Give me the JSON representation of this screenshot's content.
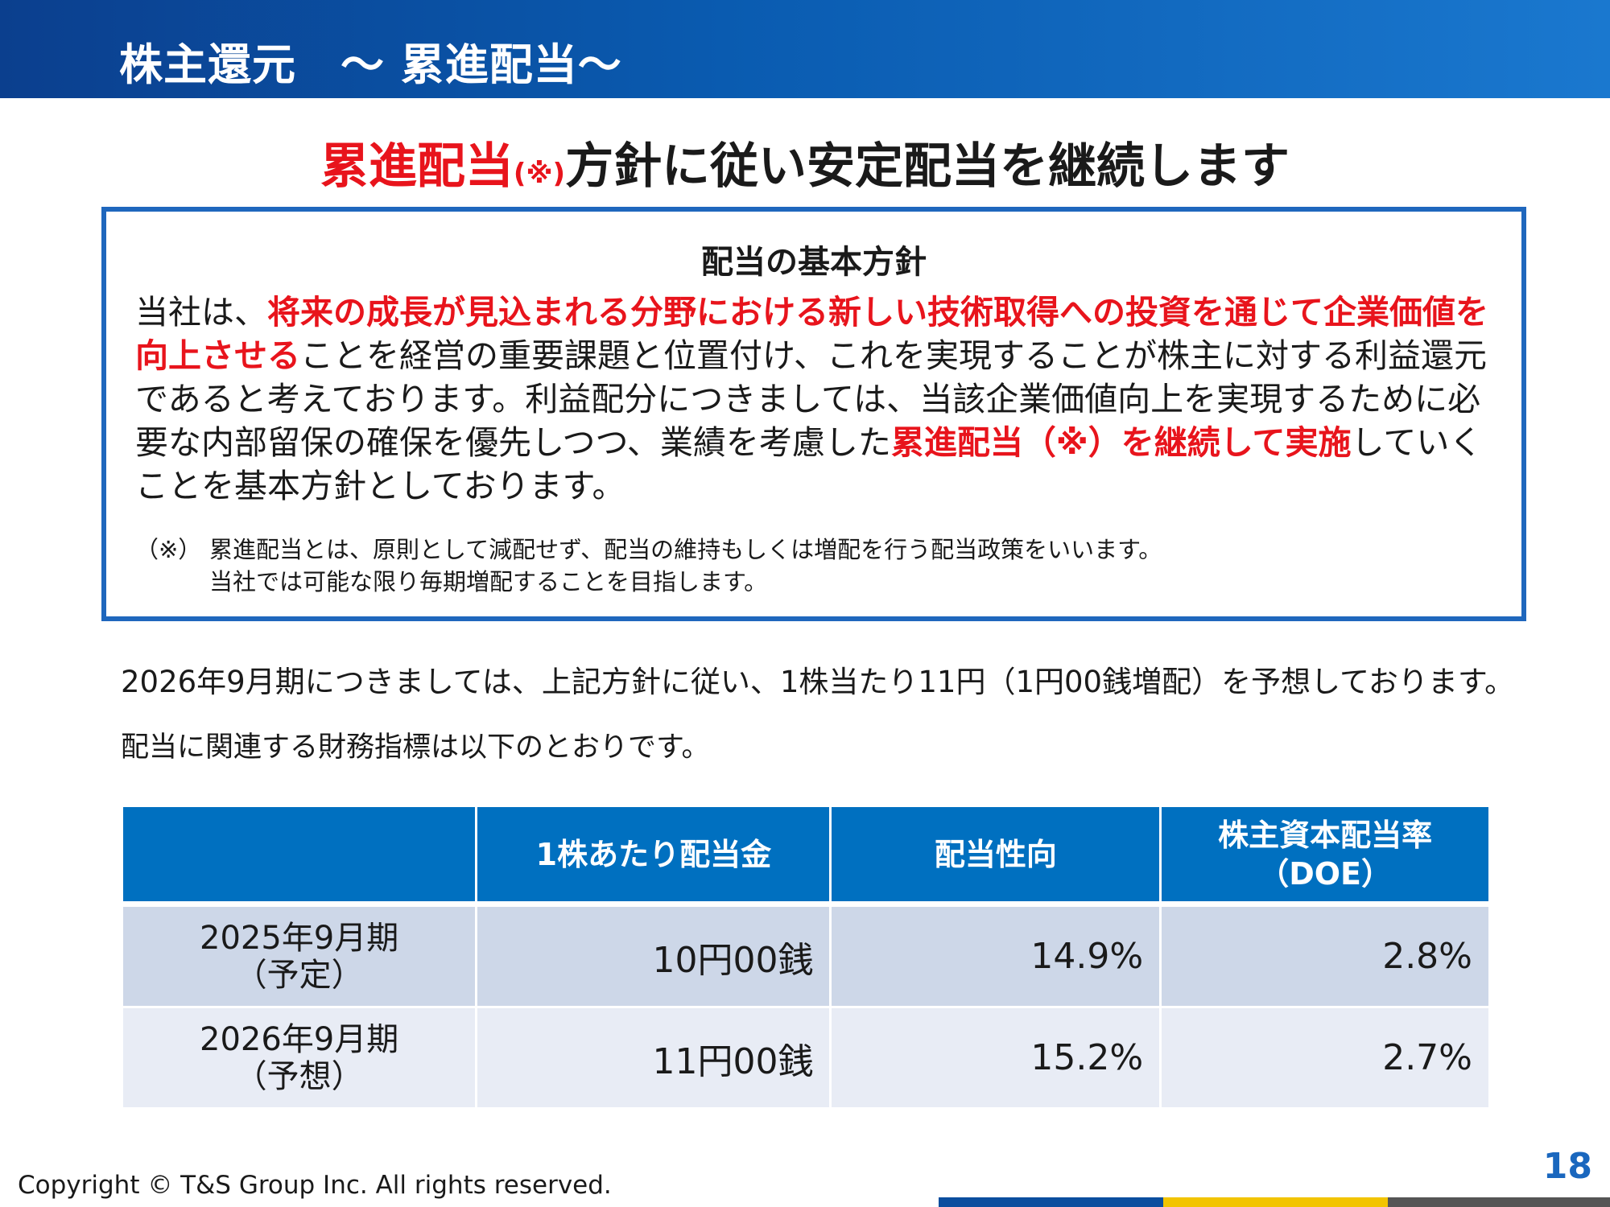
{
  "header": {
    "title": "株主還元　～ 累進配当～"
  },
  "headline": {
    "red_part": "累進配当",
    "note_mark": "(※)",
    "rest": "方針に従い安定配当を継続します"
  },
  "policy": {
    "heading": "配当の基本方針",
    "body": {
      "p1": "当社は、",
      "p2_red": "将来の成長が見込まれる分野における新しい技術取得への投資を通じて企業価値を向上させる",
      "p3": "ことを経営の重要課題と位置付け、これを実現することが株主に対する利益還元であると考えております。利益配分につきましては、当該企業価値向上を実現するために必要な内部留保の確保を優先しつつ、業績を考慮した",
      "p4_red": "累進配当（※）を継続して実施",
      "p5": "していくことを基本方針としております。"
    },
    "note": {
      "mark": "（※）",
      "line1": "累進配当とは、原則として減配せず、配当の維持もしくは増配を行う配当政策をいいます。",
      "line2": "当社では可能な限り毎期増配することを目指します。"
    }
  },
  "forecast_text": "2026年9月期につきましては、上記方針に従い、1株当たり11円（1円00銭増配）を予想しております。",
  "metrics_text": "配当に関連する財務指標は以下のとおりです。",
  "table": {
    "headers": [
      "",
      "1株あたり配当金",
      "配当性向",
      "株主資本配当率",
      "（DOE）"
    ],
    "rows": [
      {
        "period": "2025年9月期",
        "status": "（予定）",
        "dividend": "10円00銭",
        "payout": "14.9%",
        "doe": "2.8%"
      },
      {
        "period": "2026年9月期",
        "status": "（予想）",
        "dividend": "11円00銭",
        "payout": "15.2%",
        "doe": "2.7%"
      }
    ]
  },
  "footer": {
    "copyright": "Copyright © T&S Group Inc. All rights reserved.",
    "page_number": "18"
  }
}
